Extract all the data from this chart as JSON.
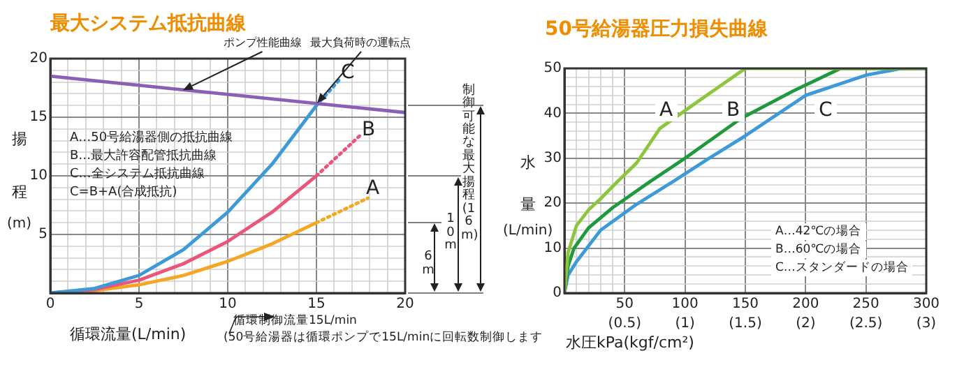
{
  "chart_data": [
    {
      "type": "line",
      "title": "最大システム抵抗曲線",
      "xlabel": "循環流量(L/min)",
      "ylabel": "揚程(m)",
      "xlim": [
        0,
        20
      ],
      "ylim": [
        0,
        20
      ],
      "xticks": [
        0,
        {
          "value": 1,
          "label": null
        },
        {
          "value": 2,
          "label": null
        },
        {
          "value": 3,
          "label": null
        },
        {
          "value": 4,
          "label": null
        },
        5,
        {
          "value": 6,
          "label": null
        },
        {
          "value": 7,
          "label": null
        },
        {
          "value": 8,
          "label": null
        },
        {
          "value": 9,
          "label": null
        },
        10,
        {
          "value": 11,
          "label": null
        },
        {
          "value": 12,
          "label": null
        },
        {
          "value": 13,
          "label": null
        },
        {
          "value": 14,
          "label": null
        },
        15,
        {
          "value": 16,
          "label": null
        },
        {
          "value": 17,
          "label": null
        },
        {
          "value": 18,
          "label": null
        },
        {
          "value": 19,
          "label": null
        },
        20
      ],
      "yticks": [
        {
          "value": 0,
          "label": null
        },
        {
          "value": 1,
          "label": null
        },
        {
          "value": 2,
          "label": null
        },
        {
          "value": 3,
          "label": null
        },
        {
          "value": 4,
          "label": null
        },
        5,
        {
          "value": 6,
          "label": null
        },
        {
          "value": 7,
          "label": null
        },
        {
          "value": 8,
          "label": null
        },
        {
          "value": 9,
          "label": null
        },
        10,
        {
          "value": 11,
          "label": null
        },
        {
          "value": 12,
          "label": null
        },
        {
          "value": 13,
          "label": null
        },
        {
          "value": 14,
          "label": null
        },
        15,
        {
          "value": 16,
          "label": null
        },
        {
          "value": 17,
          "label": null
        },
        {
          "value": 18,
          "label": null
        },
        {
          "value": 19,
          "label": null
        },
        20
      ],
      "grid": true,
      "legend": false,
      "marker": "none",
      "series": [
        {
          "color": "#8b5fb5",
          "line_style": "solid",
          "x": [
            0,
            20
          ],
          "values": [
            18.5,
            15.4
          ]
        },
        {
          "color": "#3d9ad9",
          "line_style": "solid",
          "x": [
            0,
            2.5,
            5,
            7.5,
            10,
            12.5,
            15
          ],
          "values": [
            0,
            0.4,
            1.5,
            3.7,
            6.9,
            11,
            16
          ]
        },
        {
          "color": "#3d9ad9",
          "line_style": "dotted",
          "x": [
            15,
            16.3
          ],
          "values": [
            16,
            18.2
          ]
        },
        {
          "color": "#e8577a",
          "line_style": "solid",
          "x": [
            0,
            2.5,
            5,
            7.5,
            10,
            12.5,
            15
          ],
          "values": [
            0,
            0.3,
            1.1,
            2.5,
            4.4,
            6.9,
            10
          ]
        },
        {
          "color": "#e8577a",
          "line_style": "dotted",
          "x": [
            15,
            17.5
          ],
          "values": [
            10,
            13.5
          ]
        },
        {
          "color": "#f5a623",
          "line_style": "solid",
          "x": [
            0,
            2.5,
            5,
            7.5,
            10,
            12.5,
            15
          ],
          "values": [
            0,
            0.2,
            0.7,
            1.5,
            2.7,
            4.2,
            6
          ]
        },
        {
          "color": "#f5a623",
          "line_style": "dotted",
          "x": [
            15,
            17.9
          ],
          "values": [
            6,
            8.1
          ]
        }
      ],
      "annotations": [
        "C",
        "B",
        "A",
        {
          "text": "ポンプ性能曲線",
          "x": 7.5,
          "y": 17.3
        },
        {
          "text": "最大負荷時の運転点",
          "x": 15,
          "y": 16.2
        },
        "A…50号給湯器側の抵抗曲線",
        "B…最大許容配管抵抗曲線",
        "C…全システム抵抗曲線",
        "C=B+A(合成抵抗)",
        "6m",
        "10m",
        "制御可能な最大揚程(16m)",
        "循環制御流量15L/min",
        "(50号給湯器は循環ポンプで15L/minに回転数制御します"
      ]
    },
    {
      "type": "line",
      "title": "50号給湯器圧力損失曲線",
      "xlabel": "水圧kPa(kgf/cm²)",
      "ylabel": "水量(L/min)",
      "xlim": [
        0,
        300
      ],
      "ylim": [
        0,
        50
      ],
      "xticks": [
        {
          "value": 0,
          "label": null
        },
        {
          "value": 10,
          "label": null
        },
        {
          "value": 20,
          "label": null
        },
        {
          "value": 30,
          "label": null
        },
        {
          "value": 40,
          "label": null
        },
        50,
        100,
        150,
        200,
        250,
        300
      ],
      "x2lim": [
        0,
        3
      ],
      "x2ticks": [
        {
          "value": 0.5,
          "label": "(0.5)"
        },
        {
          "value": 1,
          "label": "(1)"
        },
        {
          "value": 1.5,
          "label": "(1.5)"
        },
        {
          "value": 2,
          "label": "(2)"
        },
        {
          "value": 2.5,
          "label": "(2.5)"
        },
        {
          "value": 3,
          "label": "(3)"
        }
      ],
      "yticks": [
        0,
        {
          "value": 2,
          "label": null
        },
        {
          "value": 4,
          "label": null
        },
        {
          "value": 6,
          "label": null
        },
        {
          "value": 8,
          "label": null
        },
        10,
        {
          "value": 12,
          "label": null
        },
        {
          "value": 14,
          "label": null
        },
        {
          "value": 16,
          "label": null
        },
        {
          "value": 18,
          "label": null
        },
        20,
        {
          "value": 22,
          "label": null
        },
        {
          "value": 24,
          "label": null
        },
        {
          "value": 26,
          "label": null
        },
        {
          "value": 28,
          "label": null
        },
        30,
        {
          "value": 32,
          "label": null
        },
        {
          "value": 34,
          "label": null
        },
        {
          "value": 36,
          "label": null
        },
        {
          "value": 38,
          "label": null
        },
        40,
        {
          "value": 42,
          "label": null
        },
        {
          "value": 44,
          "label": null
        },
        {
          "value": 46,
          "label": null
        },
        {
          "value": 48,
          "label": null
        },
        50
      ],
      "grid": true,
      "legend": false,
      "marker": "none",
      "series": [
        {
          "color": "#8cc63f",
          "line_style": "solid",
          "x": [
            0,
            3,
            10,
            20,
            30,
            44,
            60,
            79,
            110,
            150,
            300
          ],
          "values": [
            0,
            9,
            15,
            18.5,
            21,
            24.8,
            29,
            36.6,
            42.5,
            50,
            50
          ]
        },
        {
          "color": "#1e9a3c",
          "line_style": "solid",
          "x": [
            0,
            3,
            8,
            20,
            40,
            71,
            100,
            146,
            190,
            229,
            300
          ],
          "values": [
            0,
            6,
            10,
            14.5,
            19,
            24.8,
            30,
            38.8,
            45,
            50,
            50
          ]
        },
        {
          "color": "#3d9ad9",
          "line_style": "solid",
          "x": [
            0,
            3,
            10,
            30,
            59,
            90,
            120,
            150,
            200,
            250,
            280,
            300
          ],
          "values": [
            0,
            4,
            7,
            14,
            19.6,
            24.8,
            30,
            35,
            44,
            48.5,
            50,
            50
          ]
        }
      ],
      "annotations": [
        "A",
        "B",
        "C",
        "A…42℃の場合",
        "B…60℃の場合",
        "C…スタンダードの場合"
      ]
    }
  ]
}
